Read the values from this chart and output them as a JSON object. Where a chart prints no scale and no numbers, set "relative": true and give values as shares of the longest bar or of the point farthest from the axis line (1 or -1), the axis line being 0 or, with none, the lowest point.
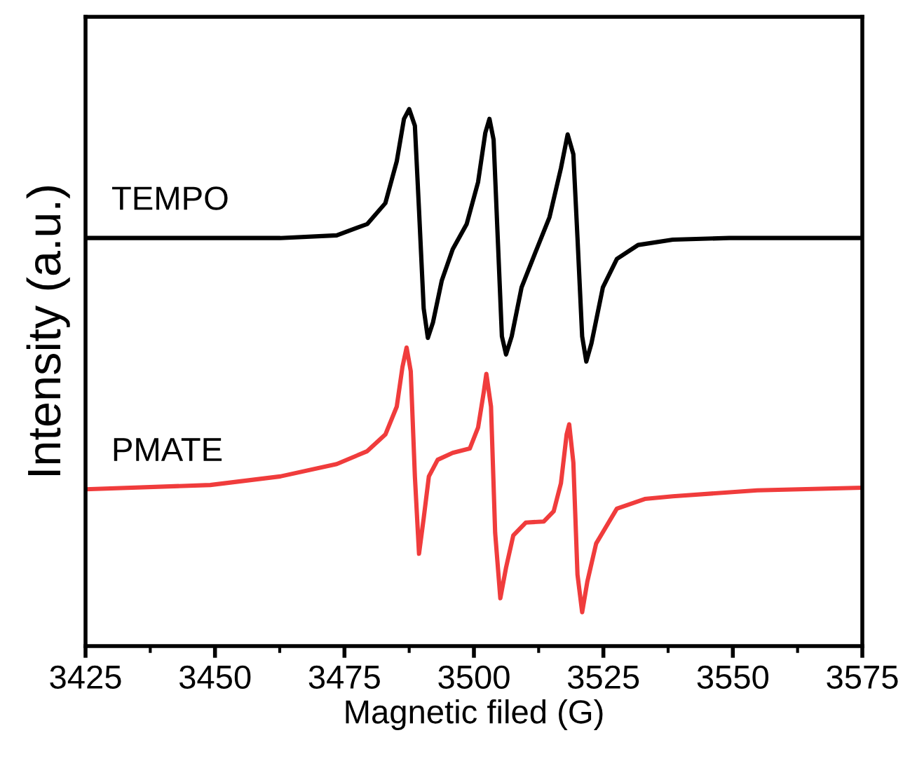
{
  "chart_data": {
    "type": "line",
    "xlabel": "Magnetic filed (G)",
    "ylabel": "Intensity (a.u.)",
    "relative": true,
    "xlim": [
      3425,
      3575
    ],
    "xticks": [
      3425,
      3450,
      3475,
      3500,
      3525,
      3550,
      3575
    ],
    "grid": false,
    "legend": false,
    "marker": "none",
    "line_style": "solid",
    "series": [
      {
        "name": "TEMPO",
        "color": "#000000",
        "x": [
          3425,
          3462.6,
          3473.5,
          3479.4,
          3482.9,
          3485.1,
          3486.5,
          3487.5,
          3488.6,
          3489.4,
          3490.3,
          3491.1,
          3492.1,
          3493.8,
          3495.9,
          3498.6,
          3500.8,
          3502.2,
          3503.0,
          3503.8,
          3504.6,
          3505.4,
          3506.2,
          3507.3,
          3509.2,
          3511.9,
          3514.6,
          3516.8,
          3518.1,
          3519.2,
          3520.0,
          3520.9,
          3521.7,
          3522.7,
          3524.9,
          3527.6,
          3531.7,
          3538.4,
          3549.3,
          3575
        ],
        "values": [
          0.76,
          0.76,
          0.765,
          0.786,
          0.825,
          0.903,
          0.982,
          1.0,
          0.969,
          0.812,
          0.629,
          0.574,
          0.603,
          0.681,
          0.739,
          0.786,
          0.864,
          0.956,
          0.982,
          0.943,
          0.76,
          0.577,
          0.543,
          0.577,
          0.668,
          0.734,
          0.799,
          0.89,
          0.953,
          0.916,
          0.76,
          0.577,
          0.53,
          0.564,
          0.668,
          0.721,
          0.747,
          0.757,
          0.76,
          0.76
        ]
      },
      {
        "name": "PMATE",
        "color": "#f03c3c",
        "x": [
          3425,
          3449.1,
          3462.6,
          3473.5,
          3479.4,
          3482.9,
          3485.1,
          3486.2,
          3487.0,
          3487.8,
          3488.6,
          3489.4,
          3490.3,
          3491.3,
          3493.0,
          3495.9,
          3499.2,
          3500.8,
          3501.9,
          3502.4,
          3503.3,
          3504.1,
          3505.1,
          3506.2,
          3507.6,
          3510.0,
          3513.5,
          3515.4,
          3516.8,
          3517.9,
          3518.4,
          3519.2,
          3520.0,
          3520.9,
          3521.9,
          3523.6,
          3527.6,
          3533.0,
          3538.4,
          3554.7,
          3575
        ],
        "values": [
          0.292,
          0.3,
          0.316,
          0.339,
          0.363,
          0.394,
          0.446,
          0.52,
          0.556,
          0.512,
          0.316,
          0.172,
          0.238,
          0.316,
          0.347,
          0.36,
          0.368,
          0.407,
          0.473,
          0.507,
          0.446,
          0.211,
          0.089,
          0.146,
          0.206,
          0.23,
          0.232,
          0.251,
          0.303,
          0.394,
          0.413,
          0.342,
          0.133,
          0.063,
          0.12,
          0.191,
          0.256,
          0.274,
          0.279,
          0.29,
          0.295
        ]
      }
    ]
  }
}
